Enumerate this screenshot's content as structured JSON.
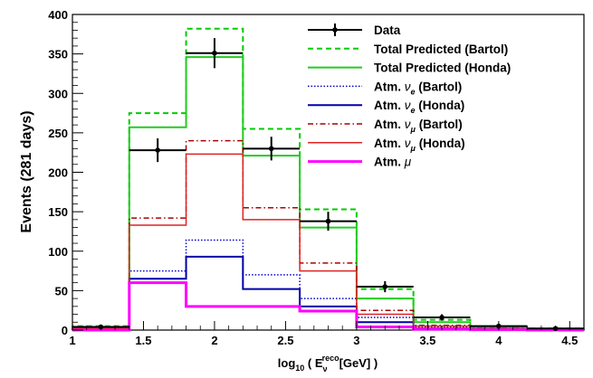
{
  "chart_data": {
    "type": "line",
    "subtype": "step-histogram",
    "title": "",
    "xlabel_prefix": "log",
    "xlabel_sub": "10",
    "xlabel_open": " ( E",
    "xlabel_E_sub": "ν",
    "xlabel_E_sup": "reco",
    "xlabel_close": "[GeV] )",
    "ylabel": "Events (281 days)",
    "xlim": [
      1,
      4.6
    ],
    "ylim": [
      0,
      400
    ],
    "xticks": [
      1,
      1.5,
      2,
      2.5,
      3,
      3.5,
      4,
      4.5
    ],
    "xtick_labels": [
      "1",
      "1.5",
      "2",
      "2.5",
      "3",
      "3.5",
      "4",
      "4.5"
    ],
    "yticks": [
      0,
      50,
      100,
      150,
      200,
      250,
      300,
      350,
      400
    ],
    "ytick_labels": [
      "0",
      "50",
      "100",
      "150",
      "200",
      "250",
      "300",
      "350",
      "400"
    ],
    "bin_edges": [
      1.0,
      1.4,
      1.8,
      2.2,
      2.6,
      3.0,
      3.4,
      3.8,
      4.2,
      4.6
    ],
    "series": [
      {
        "name": "Total Predicted (Bartol)",
        "legend_text": "Total Predicted (Bartol)",
        "color": "#00cc00",
        "dash": "6,4",
        "width": 2,
        "values": [
          5,
          275,
          382,
          255,
          153,
          52,
          13,
          4,
          2
        ]
      },
      {
        "name": "Total Predicted (Honda)",
        "legend_text": "Total Predicted (Honda)",
        "color": "#22cc22",
        "dash": "",
        "width": 2,
        "values": [
          4,
          257,
          346,
          221,
          130,
          40,
          10,
          3,
          1
        ]
      },
      {
        "name": "Atm. νe (Bartol)",
        "legend_text": "Atm. ",
        "legend_nu": "ν",
        "legend_sub": "e",
        "legend_tail": " (Bartol)",
        "color": "#0000cc",
        "dash": "1.5,2",
        "width": 1.5,
        "values": [
          1,
          75,
          114,
          70,
          40,
          16,
          4,
          1,
          0.5
        ]
      },
      {
        "name": "Atm. νe (Honda)",
        "legend_text": "Atm. ",
        "legend_nu": "ν",
        "legend_sub": "e",
        "legend_tail": " (Honda)",
        "color": "#0000aa",
        "dash": "",
        "width": 2,
        "values": [
          1,
          65,
          93,
          52,
          30,
          10,
          2,
          1,
          0.5
        ]
      },
      {
        "name": "Atm. νμ (Bartol)",
        "legend_text": "Atm. ",
        "legend_nu": "ν",
        "legend_sub": "μ",
        "legend_tail": " (Bartol)",
        "color": "#aa0000",
        "dash": "6,3,1.5,3",
        "width": 1.5,
        "values": [
          3,
          142,
          240,
          155,
          85,
          25,
          6,
          2,
          1
        ]
      },
      {
        "name": "Atm. νμ (Honda)",
        "legend_text": "Atm. ",
        "legend_nu": "ν",
        "legend_sub": "μ",
        "legend_tail": " (Honda)",
        "color": "#dd2222",
        "dash": "",
        "width": 1.5,
        "values": [
          2,
          133,
          223,
          140,
          75,
          20,
          5,
          1,
          0.5
        ]
      },
      {
        "name": "Atm. μ",
        "legend_text": "Atm. ",
        "legend_nu": "μ",
        "legend_sub": "",
        "legend_tail": "",
        "color": "#ff00ff",
        "dash": "",
        "width": 3,
        "values": [
          0,
          60,
          30,
          30,
          24,
          4,
          1,
          0.5,
          0
        ]
      }
    ],
    "data": {
      "name": "Data",
      "x": [
        1.2,
        1.6,
        2.0,
        2.4,
        2.8,
        3.2,
        3.6,
        4.0,
        4.4
      ],
      "y": [
        4,
        228,
        351,
        230,
        138,
        55,
        16,
        5,
        2
      ],
      "yerr": [
        2,
        15,
        19,
        15,
        12,
        7,
        4,
        2,
        1.4
      ],
      "color": "#000000"
    },
    "legend_position": "top-right",
    "grid": false
  }
}
